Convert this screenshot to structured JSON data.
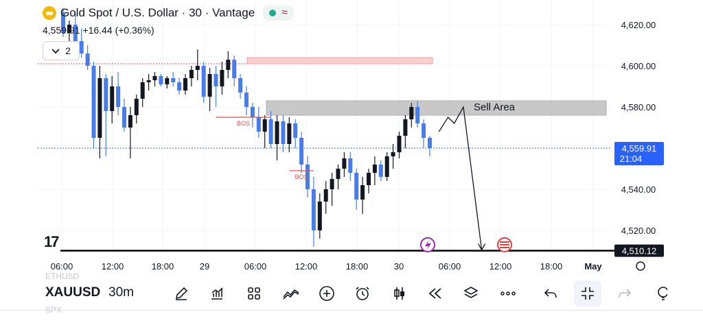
{
  "legend": {
    "title": "Gold Spot / U.S. Dollar · 30 · Vantage",
    "price": "4,559.91",
    "change": "+16.44 (+0.36%)",
    "indicators_count": "2",
    "status_wave": "≈"
  },
  "branding": {
    "tv_logo": "17"
  },
  "colors": {
    "up_candle": "#131722",
    "down_candle": "#4a7ce8",
    "price_line": "#2962ff",
    "sell_zone": "#bfbfbf",
    "supply_zone": "#f8d0d0",
    "bos_line": "#e05050",
    "support_line": "#000000"
  },
  "chart_data": {
    "type": "candlestick",
    "symbol": "XAUUSD",
    "interval": "30m",
    "ylim": [
      4500,
      4630
    ],
    "y_ticks": [
      "4,620.00",
      "4,600.00",
      "4,580.00",
      "4,540.00",
      "4,520.00"
    ],
    "x_ticks": [
      "06:00",
      "12:00",
      "18:00",
      "29",
      "06:00",
      "12:00",
      "18:00",
      "30",
      "06:00",
      "12:00",
      "18:00",
      "May"
    ],
    "current_price_label": "4,559.91",
    "countdown_label": "21:04",
    "support_price_label": "4,510.12",
    "candles": [
      [
        4626,
        4628,
        4614,
        4616
      ],
      [
        4616,
        4622,
        4612,
        4620
      ],
      [
        4620,
        4626,
        4610,
        4612
      ],
      [
        4612,
        4618,
        4604,
        4606
      ],
      [
        4606,
        4610,
        4598,
        4600
      ],
      [
        4600,
        4602,
        4560,
        4565
      ],
      [
        4565,
        4600,
        4555,
        4594
      ],
      [
        4594,
        4596,
        4556,
        4578
      ],
      [
        4578,
        4595,
        4572,
        4590
      ],
      [
        4590,
        4597,
        4576,
        4580
      ],
      [
        4580,
        4584,
        4568,
        4570
      ],
      [
        4570,
        4580,
        4555,
        4576
      ],
      [
        4576,
        4586,
        4572,
        4584
      ],
      [
        4584,
        4594,
        4580,
        4592
      ],
      [
        4592,
        4596,
        4588,
        4593
      ],
      [
        4593,
        4597,
        4590,
        4595
      ],
      [
        4595,
        4596,
        4590,
        4591
      ],
      [
        4591,
        4595,
        4589,
        4594
      ],
      [
        4594,
        4597,
        4590,
        4592
      ],
      [
        4592,
        4594,
        4586,
        4588
      ],
      [
        4588,
        4596,
        4586,
        4594
      ],
      [
        4594,
        4600,
        4590,
        4598
      ],
      [
        4598,
        4608,
        4593,
        4600
      ],
      [
        4600,
        4602,
        4582,
        4585
      ],
      [
        4585,
        4599,
        4578,
        4596
      ],
      [
        4596,
        4600,
        4580,
        4590
      ],
      [
        4590,
        4602,
        4586,
        4598
      ],
      [
        4598,
        4607,
        4594,
        4603
      ],
      [
        4603,
        4605,
        4590,
        4594
      ],
      [
        4594,
        4596,
        4584,
        4587
      ],
      [
        4587,
        4590,
        4576,
        4580
      ],
      [
        4580,
        4582,
        4570,
        4575
      ],
      [
        4575,
        4580,
        4565,
        4568
      ],
      [
        4568,
        4576,
        4560,
        4574
      ],
      [
        4574,
        4578,
        4560,
        4562
      ],
      [
        4562,
        4576,
        4554,
        4573
      ],
      [
        4573,
        4576,
        4558,
        4562
      ],
      [
        4562,
        4575,
        4558,
        4572
      ],
      [
        4572,
        4574,
        4560,
        4565
      ],
      [
        4565,
        4568,
        4548,
        4552
      ],
      [
        4552,
        4556,
        4536,
        4540
      ],
      [
        4540,
        4546,
        4512,
        4520
      ],
      [
        4520,
        4538,
        4516,
        4534
      ],
      [
        4534,
        4544,
        4528,
        4540
      ],
      [
        4540,
        4548,
        4532,
        4545
      ],
      [
        4545,
        4552,
        4540,
        4550
      ],
      [
        4550,
        4558,
        4546,
        4555
      ],
      [
        4555,
        4558,
        4544,
        4548
      ],
      [
        4548,
        4550,
        4530,
        4535
      ],
      [
        4535,
        4546,
        4528,
        4542
      ],
      [
        4542,
        4550,
        4538,
        4548
      ],
      [
        4548,
        4556,
        4542,
        4552
      ],
      [
        4552,
        4554,
        4544,
        4546
      ],
      [
        4546,
        4558,
        4544,
        4556
      ],
      [
        4556,
        4562,
        4550,
        4558
      ],
      [
        4558,
        4568,
        4555,
        4566
      ],
      [
        4566,
        4576,
        4560,
        4574
      ],
      [
        4574,
        4582,
        4570,
        4580
      ],
      [
        4580,
        4583,
        4570,
        4572
      ],
      [
        4572,
        4574,
        4560,
        4565
      ],
      [
        4565,
        4566,
        4556,
        4560
      ]
    ],
    "annotations": {
      "sell_area_label": "Sell Area",
      "bos_labels": [
        "BOS",
        "BOS"
      ],
      "sell_zone_range": [
        4576,
        4583
      ],
      "supply_zone_range": [
        4601,
        4604
      ],
      "bos_levels": [
        4575,
        4549
      ],
      "support_level": 4510.12,
      "projection_path": [
        [
          61.5,
          4568
        ],
        [
          63,
          4575
        ],
        [
          64,
          4572
        ],
        [
          65.5,
          4580
        ],
        [
          68.5,
          4510.5
        ]
      ]
    }
  },
  "toolbar": {
    "symbol": "XAUUSD",
    "interval": "30m",
    "ghost_top": "ETHUSD",
    "ghost_bottom": "SPX",
    "icons": [
      "pencil-icon",
      "indicators-chart-icon",
      "layout-grid-icon",
      "patterns-icon",
      "add-circle-icon",
      "alarm-clock-icon",
      "candle-type-icon",
      "replay-icon",
      "layers-icon",
      "more-icon",
      "undo-icon",
      "collapse-icon",
      "redo-icon",
      "hint-icon"
    ]
  }
}
